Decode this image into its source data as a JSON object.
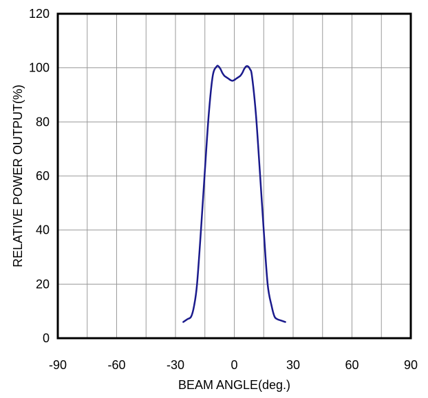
{
  "chart_data": {
    "type": "line",
    "title": "",
    "xlabel": "BEAM ANGLE(deg.)",
    "ylabel": "RELATIVE POWER OUTPUT(%)",
    "xlim": [
      -90,
      90
    ],
    "ylim": [
      0,
      120
    ],
    "xticks": [
      -90,
      -60,
      -30,
      0,
      30,
      60,
      90
    ],
    "yticks": [
      0,
      20,
      40,
      60,
      80,
      100,
      120
    ],
    "x_minor_step": 15,
    "grid": true,
    "legend": "none",
    "series": [
      {
        "color": "#1a1a8c",
        "x": [
          -26,
          -24,
          -22,
          -20.5,
          -19,
          -17,
          -15,
          -13,
          -11,
          -9,
          -8,
          -7,
          -6,
          -5,
          -4,
          -3,
          -2,
          -1,
          0,
          1,
          2,
          3,
          4,
          5,
          6,
          7,
          8,
          9,
          11,
          13,
          15,
          17,
          19,
          20.5,
          22,
          24,
          26
        ],
        "y": [
          6,
          7,
          8,
          12,
          20,
          40,
          62,
          83,
          97,
          100.5,
          100.5,
          99.5,
          98,
          97,
          96.5,
          96,
          95.5,
          95.2,
          95.5,
          96,
          96.5,
          97,
          98,
          99.5,
          100.5,
          100.5,
          99.5,
          97,
          83,
          62,
          40,
          20,
          12,
          8,
          7,
          6.5,
          6
        ]
      }
    ]
  }
}
